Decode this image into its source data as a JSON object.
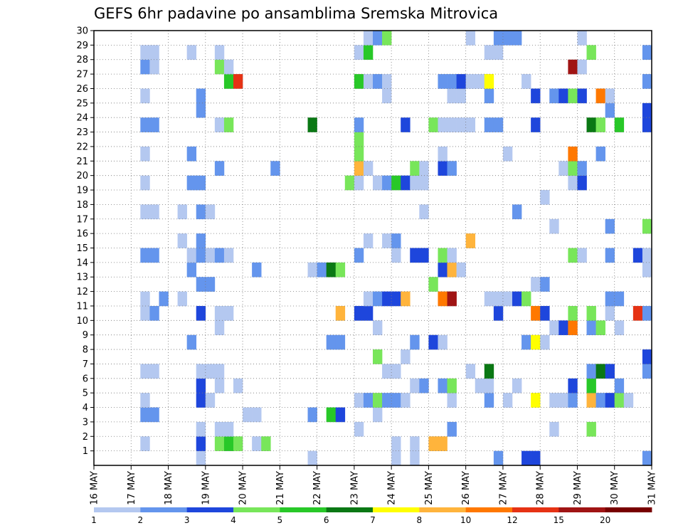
{
  "chart_data": {
    "type": "heatmap",
    "title": "GEFS 6hr padavine po ansamblima Sremska Mitrovica",
    "xlabel": "",
    "ylabel": "",
    "x_tick_labels": [
      "16 MAY",
      "17 MAY",
      "18 MAY",
      "19 MAY",
      "20 MAY",
      "21 MAY",
      "22 MAY",
      "23 MAY",
      "24 MAY",
      "25 MAY",
      "26 MAY",
      "27 MAY",
      "28 MAY",
      "29 MAY",
      "30 MAY",
      "31 MAY"
    ],
    "y_tick_labels": [
      "1",
      "2",
      "3",
      "4",
      "5",
      "6",
      "7",
      "8",
      "9",
      "10",
      "11",
      "12",
      "13",
      "14",
      "15",
      "16",
      "17",
      "18",
      "19",
      "20",
      "21",
      "22",
      "23",
      "24",
      "25",
      "26",
      "27",
      "28",
      "29",
      "30"
    ],
    "xlim": [
      0,
      60
    ],
    "ylim": [
      0,
      30
    ],
    "grid": true,
    "units_note": "x = 6-hour step index from 16 MAY 00Z; y = ensemble member",
    "legend": {
      "placement": "bottom",
      "levels": [
        "1",
        "2",
        "3",
        "4",
        "5",
        "6",
        "7",
        "8",
        "10",
        "12",
        "15",
        "20"
      ],
      "colors": [
        "#b4c8f0",
        "#6495ed",
        "#1e46dc",
        "#78e65a",
        "#28c828",
        "#0a7814",
        "#ffff00",
        "#ffb43c",
        "#ff7800",
        "#e63214",
        "#a01414",
        "#780000"
      ]
    },
    "cells": [
      [
        11,
        1,
        1
      ],
      [
        23,
        1,
        1
      ],
      [
        32,
        1,
        1
      ],
      [
        34,
        1,
        1
      ],
      [
        43,
        1,
        2
      ],
      [
        46,
        1,
        3
      ],
      [
        47,
        1,
        3
      ],
      [
        59,
        1,
        2
      ],
      [
        5,
        2,
        1
      ],
      [
        11,
        2,
        3
      ],
      [
        13,
        2,
        4
      ],
      [
        14,
        2,
        5
      ],
      [
        15,
        2,
        4
      ],
      [
        17,
        2,
        1
      ],
      [
        18,
        2,
        4
      ],
      [
        32,
        2,
        1
      ],
      [
        34,
        2,
        1
      ],
      [
        36,
        2,
        8
      ],
      [
        37,
        2,
        8
      ],
      [
        11,
        3,
        1
      ],
      [
        13,
        3,
        1
      ],
      [
        14,
        3,
        1
      ],
      [
        28,
        3,
        1
      ],
      [
        38,
        3,
        2
      ],
      [
        49,
        3,
        1
      ],
      [
        53,
        3,
        4
      ],
      [
        5,
        4,
        2
      ],
      [
        6,
        4,
        2
      ],
      [
        16,
        4,
        1
      ],
      [
        17,
        4,
        1
      ],
      [
        23,
        4,
        2
      ],
      [
        25,
        4,
        5
      ],
      [
        26,
        4,
        3
      ],
      [
        30,
        4,
        1
      ],
      [
        5,
        5,
        1
      ],
      [
        11,
        5,
        3
      ],
      [
        12,
        5,
        1
      ],
      [
        28,
        5,
        1
      ],
      [
        29,
        5,
        2
      ],
      [
        30,
        5,
        4
      ],
      [
        31,
        5,
        2
      ],
      [
        32,
        5,
        2
      ],
      [
        33,
        5,
        1
      ],
      [
        38,
        5,
        1
      ],
      [
        42,
        5,
        2
      ],
      [
        44,
        5,
        1
      ],
      [
        47,
        5,
        7
      ],
      [
        49,
        5,
        1
      ],
      [
        50,
        5,
        1
      ],
      [
        51,
        5,
        2
      ],
      [
        53,
        5,
        8
      ],
      [
        54,
        5,
        2
      ],
      [
        55,
        5,
        3
      ],
      [
        56,
        5,
        4
      ],
      [
        57,
        5,
        1
      ],
      [
        11,
        6,
        3
      ],
      [
        13,
        6,
        1
      ],
      [
        15,
        6,
        1
      ],
      [
        34,
        6,
        1
      ],
      [
        35,
        6,
        2
      ],
      [
        37,
        6,
        2
      ],
      [
        38,
        6,
        4
      ],
      [
        41,
        6,
        1
      ],
      [
        42,
        6,
        1
      ],
      [
        45,
        6,
        1
      ],
      [
        51,
        6,
        3
      ],
      [
        53,
        6,
        5
      ],
      [
        56,
        6,
        2
      ],
      [
        5,
        7,
        1
      ],
      [
        6,
        7,
        1
      ],
      [
        11,
        7,
        1
      ],
      [
        12,
        7,
        1
      ],
      [
        13,
        7,
        1
      ],
      [
        31,
        7,
        1
      ],
      [
        32,
        7,
        1
      ],
      [
        40,
        7,
        1
      ],
      [
        42,
        7,
        6
      ],
      [
        53,
        7,
        2
      ],
      [
        54,
        7,
        6
      ],
      [
        55,
        7,
        3
      ],
      [
        59,
        7,
        2
      ],
      [
        30,
        8,
        4
      ],
      [
        33,
        8,
        1
      ],
      [
        59,
        8,
        3
      ],
      [
        10,
        9,
        2
      ],
      [
        25,
        9,
        2
      ],
      [
        26,
        9,
        2
      ],
      [
        34,
        9,
        2
      ],
      [
        36,
        9,
        3
      ],
      [
        37,
        9,
        1
      ],
      [
        46,
        9,
        2
      ],
      [
        47,
        9,
        7
      ],
      [
        48,
        9,
        1
      ],
      [
        13,
        10,
        1
      ],
      [
        30,
        10,
        1
      ],
      [
        49,
        10,
        1
      ],
      [
        50,
        10,
        3
      ],
      [
        51,
        10,
        9
      ],
      [
        53,
        10,
        2
      ],
      [
        54,
        10,
        4
      ],
      [
        56,
        10,
        1
      ],
      [
        5,
        11,
        1
      ],
      [
        6,
        11,
        2
      ],
      [
        11,
        11,
        3
      ],
      [
        13,
        11,
        1
      ],
      [
        14,
        11,
        1
      ],
      [
        26,
        11,
        8
      ],
      [
        28,
        11,
        3
      ],
      [
        29,
        11,
        3
      ],
      [
        43,
        11,
        3
      ],
      [
        47,
        11,
        9
      ],
      [
        48,
        11,
        3
      ],
      [
        51,
        11,
        4
      ],
      [
        53,
        11,
        4
      ],
      [
        55,
        11,
        1
      ],
      [
        58,
        11,
        10
      ],
      [
        59,
        11,
        2
      ],
      [
        5,
        12,
        1
      ],
      [
        7,
        12,
        2
      ],
      [
        9,
        12,
        1
      ],
      [
        29,
        12,
        1
      ],
      [
        30,
        12,
        2
      ],
      [
        31,
        12,
        3
      ],
      [
        32,
        12,
        3
      ],
      [
        33,
        12,
        8
      ],
      [
        37,
        12,
        9
      ],
      [
        38,
        12,
        11
      ],
      [
        42,
        12,
        1
      ],
      [
        43,
        12,
        1
      ],
      [
        44,
        12,
        1
      ],
      [
        45,
        12,
        3
      ],
      [
        46,
        12,
        4
      ],
      [
        55,
        12,
        2
      ],
      [
        56,
        12,
        2
      ],
      [
        11,
        13,
        2
      ],
      [
        12,
        13,
        2
      ],
      [
        36,
        13,
        4
      ],
      [
        47,
        13,
        1
      ],
      [
        48,
        13,
        2
      ],
      [
        10,
        14,
        2
      ],
      [
        17,
        14,
        2
      ],
      [
        23,
        14,
        1
      ],
      [
        24,
        14,
        2
      ],
      [
        25,
        14,
        6
      ],
      [
        26,
        14,
        4
      ],
      [
        37,
        14,
        3
      ],
      [
        38,
        14,
        8
      ],
      [
        39,
        14,
        1
      ],
      [
        59,
        14,
        1
      ],
      [
        5,
        15,
        2
      ],
      [
        6,
        15,
        2
      ],
      [
        10,
        15,
        1
      ],
      [
        11,
        15,
        2
      ],
      [
        12,
        15,
        1
      ],
      [
        13,
        15,
        2
      ],
      [
        14,
        15,
        1
      ],
      [
        28,
        15,
        2
      ],
      [
        32,
        15,
        1
      ],
      [
        34,
        15,
        3
      ],
      [
        35,
        15,
        3
      ],
      [
        37,
        15,
        4
      ],
      [
        38,
        15,
        1
      ],
      [
        51,
        15,
        4
      ],
      [
        52,
        15,
        1
      ],
      [
        55,
        15,
        2
      ],
      [
        58,
        15,
        3
      ],
      [
        59,
        15,
        1
      ],
      [
        9,
        16,
        1
      ],
      [
        11,
        16,
        2
      ],
      [
        29,
        16,
        1
      ],
      [
        31,
        16,
        1
      ],
      [
        32,
        16,
        2
      ],
      [
        40,
        16,
        8
      ],
      [
        49,
        17,
        1
      ],
      [
        55,
        17,
        2
      ],
      [
        59,
        17,
        4
      ],
      [
        5,
        18,
        1
      ],
      [
        6,
        18,
        1
      ],
      [
        9,
        18,
        1
      ],
      [
        11,
        18,
        2
      ],
      [
        12,
        18,
        1
      ],
      [
        35,
        18,
        1
      ],
      [
        45,
        18,
        2
      ],
      [
        48,
        19,
        1
      ],
      [
        5,
        20,
        1
      ],
      [
        10,
        20,
        2
      ],
      [
        11,
        20,
        2
      ],
      [
        27,
        20,
        4
      ],
      [
        28,
        20,
        1
      ],
      [
        30,
        20,
        1
      ],
      [
        31,
        20,
        2
      ],
      [
        32,
        20,
        5
      ],
      [
        33,
        20,
        3
      ],
      [
        34,
        20,
        1
      ],
      [
        35,
        20,
        1
      ],
      [
        51,
        20,
        1
      ],
      [
        52,
        20,
        3
      ],
      [
        13,
        21,
        2
      ],
      [
        19,
        21,
        2
      ],
      [
        28,
        21,
        8
      ],
      [
        29,
        21,
        1
      ],
      [
        34,
        21,
        4
      ],
      [
        35,
        21,
        1
      ],
      [
        37,
        21,
        3
      ],
      [
        38,
        21,
        2
      ],
      [
        50,
        21,
        1
      ],
      [
        51,
        21,
        4
      ],
      [
        52,
        21,
        2
      ],
      [
        5,
        22,
        1
      ],
      [
        10,
        22,
        2
      ],
      [
        28,
        22,
        4
      ],
      [
        37,
        22,
        1
      ],
      [
        44,
        22,
        1
      ],
      [
        51,
        22,
        9
      ],
      [
        54,
        22,
        2
      ],
      [
        28,
        23,
        4
      ],
      [
        5,
        24,
        2
      ],
      [
        6,
        24,
        2
      ],
      [
        13,
        24,
        1
      ],
      [
        14,
        24,
        4
      ],
      [
        23,
        24,
        6
      ],
      [
        28,
        24,
        2
      ],
      [
        33,
        24,
        3
      ],
      [
        36,
        24,
        4
      ],
      [
        37,
        24,
        1
      ],
      [
        38,
        24,
        1
      ],
      [
        39,
        24,
        1
      ],
      [
        40,
        24,
        1
      ],
      [
        42,
        24,
        2
      ],
      [
        43,
        24,
        2
      ],
      [
        47,
        24,
        3
      ],
      [
        53,
        24,
        6
      ],
      [
        54,
        24,
        4
      ],
      [
        56,
        24,
        5
      ],
      [
        59,
        24,
        3
      ],
      [
        11,
        25,
        2
      ],
      [
        55,
        25,
        2
      ],
      [
        59,
        25,
        3
      ],
      [
        5,
        26,
        1
      ],
      [
        11,
        26,
        2
      ],
      [
        31,
        26,
        1
      ],
      [
        38,
        26,
        1
      ],
      [
        39,
        26,
        1
      ],
      [
        42,
        26,
        2
      ],
      [
        47,
        26,
        3
      ],
      [
        49,
        26,
        2
      ],
      [
        50,
        26,
        3
      ],
      [
        51,
        26,
        4
      ],
      [
        52,
        26,
        3
      ],
      [
        54,
        26,
        9
      ],
      [
        55,
        26,
        1
      ],
      [
        14,
        27,
        5
      ],
      [
        15,
        27,
        10
      ],
      [
        28,
        27,
        5
      ],
      [
        29,
        27,
        1
      ],
      [
        30,
        27,
        2
      ],
      [
        31,
        27,
        1
      ],
      [
        37,
        27,
        2
      ],
      [
        38,
        27,
        2
      ],
      [
        39,
        27,
        3
      ],
      [
        40,
        27,
        1
      ],
      [
        41,
        27,
        1
      ],
      [
        42,
        27,
        7
      ],
      [
        46,
        27,
        1
      ],
      [
        59,
        27,
        2
      ],
      [
        5,
        28,
        2
      ],
      [
        6,
        28,
        1
      ],
      [
        13,
        28,
        4
      ],
      [
        14,
        28,
        1
      ],
      [
        51,
        28,
        11
      ],
      [
        52,
        28,
        1
      ],
      [
        5,
        29,
        1
      ],
      [
        6,
        29,
        1
      ],
      [
        10,
        29,
        1
      ],
      [
        13,
        29,
        1
      ],
      [
        28,
        29,
        1
      ],
      [
        29,
        29,
        5
      ],
      [
        42,
        29,
        1
      ],
      [
        43,
        29,
        1
      ],
      [
        53,
        29,
        4
      ],
      [
        59,
        29,
        2
      ],
      [
        29,
        30,
        1
      ],
      [
        30,
        30,
        2
      ],
      [
        31,
        30,
        4
      ],
      [
        40,
        30,
        1
      ],
      [
        43,
        30,
        2
      ],
      [
        44,
        30,
        2
      ],
      [
        45,
        30,
        2
      ],
      [
        52,
        30,
        1
      ]
    ]
  }
}
